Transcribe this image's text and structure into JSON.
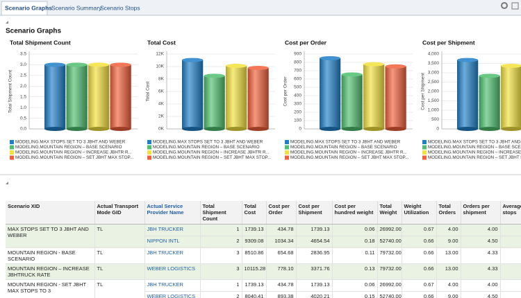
{
  "tabs": [
    "Scenario Graphs",
    "Scenario Summary",
    "Scenario Stops"
  ],
  "section_title": "Scenario Graphs",
  "chart_data": [
    {
      "type": "bar",
      "title": "Total Shipment Count",
      "y_label": "Total Shipment Count",
      "grid": true,
      "ylim": [
        0,
        3.5
      ],
      "yticks": [
        {
          "value": 0,
          "label": "0.0"
        },
        0.5,
        {
          "value": 1,
          "label": "1.0"
        },
        1.5,
        {
          "value": 2,
          "label": "2.0"
        },
        2.5,
        {
          "value": 3,
          "label": "3.0"
        },
        3.5
      ],
      "series": [
        {
          "name": "MODELING.MAX STOPS SET TO 3 JBHT AND WEBER",
          "color": "#1e7fc8",
          "values": [
            3
          ]
        },
        {
          "name": "MODELING.MOUNTAIN REGION – BASE SCENARIO",
          "color": "#4fbf6e",
          "values": [
            3
          ]
        },
        {
          "name": "MODELING.MOUNTAIN REGION – INCREASE JBHTR R...",
          "color": "#f2e03c",
          "values": [
            3
          ]
        },
        {
          "name": "MODELING.MOUNTAIN REGION – SET JBHT MAX STOP...",
          "color": "#f0603a",
          "values": [
            3
          ]
        }
      ]
    },
    {
      "type": "bar",
      "title": "Total Cost",
      "y_label": "Total  Cost",
      "grid": true,
      "ylim": [
        0,
        12000
      ],
      "yticks": [
        {
          "value": 0,
          "label": "0K"
        },
        {
          "value": 2000,
          "label": "2K"
        },
        {
          "value": 4000,
          "label": "4K"
        },
        {
          "value": 6000,
          "label": "6K"
        },
        {
          "value": 8000,
          "label": "8K"
        },
        {
          "value": 10000,
          "label": "10K"
        },
        {
          "value": 12000,
          "label": "12K"
        }
      ],
      "series": [
        {
          "name": "MODELING.MAX STOPS SET TO 3 JBHT AND WEBER",
          "color": "#1e7fc8",
          "values": [
            11048.21
          ]
        },
        {
          "name": "MODELING.MOUNTAIN REGION – BASE SCENARIO",
          "color": "#4fbf6e",
          "values": [
            8510.86
          ]
        },
        {
          "name": "MODELING.MOUNTAIN REGION – INCREASE JBHTR R...",
          "color": "#f2e03c",
          "values": [
            10115.28
          ]
        },
        {
          "name": "MODELING.MOUNTAIN REGION – SET JBHT MAX STOP...",
          "color": "#f0603a",
          "values": [
            9779.54
          ]
        }
      ]
    },
    {
      "type": "bar",
      "title": "Cost per Order",
      "y_label": "Cost per Order",
      "grid": true,
      "ylim": [
        0,
        900
      ],
      "yticks": [
        0,
        100,
        200,
        300,
        400,
        500,
        600,
        700,
        800,
        900
      ],
      "series": [
        {
          "name": "MODELING.MAX STOPS SET TO 3 JBHT AND WEBER",
          "color": "#1e7fc8",
          "values": [
            849.86
          ]
        },
        {
          "name": "MODELING.MOUNTAIN REGION – BASE SCENARIO",
          "color": "#4fbf6e",
          "values": [
            654.68
          ]
        },
        {
          "name": "MODELING.MOUNTAIN REGION – INCREASE JBHTR R...",
          "color": "#f2e03c",
          "values": [
            778.1
          ]
        },
        {
          "name": "MODELING.MOUNTAIN REGION – SET JBHT MAX STOP...",
          "color": "#f0603a",
          "values": [
            752.27
          ]
        }
      ]
    },
    {
      "type": "bar",
      "title": "Cost per Shipment",
      "y_label": "Cost per Shipment",
      "grid": true,
      "ylim": [
        0,
        4000
      ],
      "yticks": [
        0,
        500,
        {
          "value": 1000,
          "label": "1,000"
        },
        {
          "value": 1500,
          "label": "1,500"
        },
        {
          "value": 2000,
          "label": "2,000"
        },
        {
          "value": 2500,
          "label": "2,500"
        },
        {
          "value": 3000,
          "label": "3,000"
        },
        {
          "value": 3500,
          "label": "3,500"
        },
        {
          "value": 4000,
          "label": "4,000"
        }
      ],
      "series": [
        {
          "name": "MODELING.MAX STOPS SET TO 3 JBHT AND WEBER",
          "color": "#1e7fc8",
          "values": [
            3682.74
          ]
        },
        {
          "name": "MODELING.MOUNTAIN REGION – BASE SCENARIO",
          "color": "#4fbf6e",
          "values": [
            2836.95
          ]
        },
        {
          "name": "MODELING.MOUNTAIN REGION – INCREASE JBHTR R...",
          "color": "#f2e03c",
          "values": [
            3371.76
          ]
        },
        {
          "name": "MODELING.MOUNTAIN REGION – SET JBHT MAX STOP...",
          "color": "#f0603a",
          "values": [
            3259.85
          ]
        }
      ]
    }
  ],
  "table": {
    "columns": [
      "Scenario XID",
      "Actual Transport Mode GID",
      "Actual Service Provider Name",
      "Total Shipment Count",
      "Total Cost",
      "Cost per Order",
      "Cost per Shipment",
      "Cost per hundred weight",
      "Total Weight",
      "Weight Utilization",
      "Total Orders",
      "Orders per shipment",
      "Average stops"
    ],
    "groups": [
      {
        "scenario": "MAX STOPS SET TO 3 JBHT AND WEBER",
        "mode": "TL",
        "rows": [
          [
            "JBH TRUCKER",
            "1",
            "1739.13",
            "434.78",
            "1739.13",
            "0.06",
            "26992.00",
            "0.67",
            "4.00",
            "4.00"
          ],
          [
            "NIPPON INTL",
            "2",
            "9309.08",
            "1034.34",
            "4654.54",
            "0.18",
            "52740.00",
            "0.66",
            "9.00",
            "4.50"
          ]
        ]
      },
      {
        "scenario": "MOUNTAIN REGION - BASE SCENARIO",
        "mode": "TL",
        "rows": [
          [
            "JBH TRUCKER",
            "3",
            "8510.86",
            "654.68",
            "2836.95",
            "0.11",
            "79732.00",
            "0.66",
            "13.00",
            "4.33"
          ]
        ]
      },
      {
        "scenario": "MOUNTAIN REGION – INCREASE JBHTRUCK RATE",
        "mode": "TL",
        "rows": [
          [
            "WEBER LOGISTICS",
            "3",
            "10115.28",
            "778.10",
            "3371.76",
            "0.13",
            "79732.00",
            "0.66",
            "13.00",
            "4.33"
          ]
        ]
      },
      {
        "scenario": "MOUNTAIN REGION - SET JBHT MAX STOPS TO 3",
        "mode": "TL",
        "rows": [
          [
            "JBH TRUCKER",
            "1",
            "1739.13",
            "434.78",
            "1739.13",
            "0.06",
            "26992.00",
            "0.67",
            "4.00",
            "4.00"
          ],
          [
            "WEBER LOGISTICS",
            "2",
            "8040.41",
            "893.38",
            "4020.21",
            "0.15",
            "52740.00",
            "0.66",
            "9.00",
            "4.50"
          ]
        ]
      }
    ]
  }
}
